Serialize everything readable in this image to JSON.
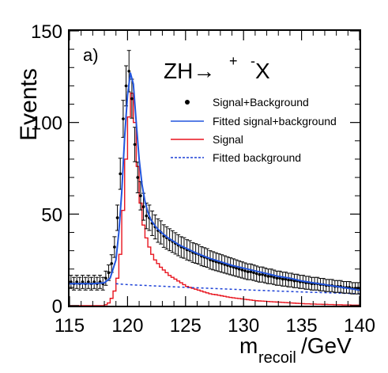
{
  "chart_data": {
    "type": "line",
    "panel_label": "a)",
    "process": {
      "prefix": "ZH→",
      "plus": "+",
      "minus": "-",
      "suffix": "X"
    },
    "xlabel": {
      "main": "m",
      "sub": "recoil",
      "unit": "/GeV"
    },
    "ylabel": "Events",
    "xlim": [
      115,
      140
    ],
    "ylim": [
      0,
      150
    ],
    "xticks": [
      115,
      120,
      125,
      130,
      135,
      140
    ],
    "yticks": [
      0,
      50,
      100,
      150
    ],
    "grid": false,
    "legend_position": "top-right",
    "legend": [
      {
        "label": "Signal+Background",
        "style": "marker",
        "color": "#000000"
      },
      {
        "label": "Fitted signal+background",
        "style": "solid",
        "color": "#2255dd"
      },
      {
        "label": "Signal",
        "style": "solid",
        "color": "#e8141e"
      },
      {
        "label": "Fitted background",
        "style": "dashed",
        "color": "#1a3fd6"
      }
    ],
    "bin_width": 0.25,
    "series": [
      {
        "name": "Signal+Background",
        "style": "points_with_errors",
        "color": "#000000",
        "x": [
          115.125,
          115.375,
          115.625,
          115.875,
          116.125,
          116.375,
          116.625,
          116.875,
          117.125,
          117.375,
          117.625,
          117.875,
          118.125,
          118.375,
          118.625,
          118.875,
          119.125,
          119.375,
          119.625,
          119.875,
          120.125,
          120.375,
          120.625,
          120.875,
          121.125,
          121.375,
          121.625,
          121.875,
          122.125,
          122.375,
          122.625,
          122.875,
          123.125,
          123.375,
          123.625,
          123.875,
          124.125,
          124.375,
          124.625,
          124.875,
          125.125,
          125.375,
          125.625,
          125.875,
          126.125,
          126.375,
          126.625,
          126.875,
          127.125,
          127.375,
          127.625,
          127.875,
          128.125,
          128.375,
          128.625,
          128.875,
          129.125,
          129.375,
          129.625,
          129.875,
          130.125,
          130.375,
          130.625,
          130.875,
          131.125,
          131.375,
          131.625,
          131.875,
          132.125,
          132.375,
          132.625,
          132.875,
          133.125,
          133.375,
          133.625,
          133.875,
          134.125,
          134.375,
          134.625,
          134.875,
          135.125,
          135.375,
          135.625,
          135.875,
          136.125,
          136.375,
          136.625,
          136.875,
          137.125,
          137.375,
          137.625,
          137.875,
          138.125,
          138.375,
          138.625,
          138.875,
          139.125,
          139.375,
          139.625,
          139.875
        ],
        "y": [
          13,
          12,
          13,
          12,
          13,
          12,
          13,
          12,
          13,
          12,
          13,
          12,
          15,
          18,
          23,
          32,
          48,
          72,
          102,
          120,
          128,
          113,
          88,
          70,
          60,
          54,
          49,
          48,
          45,
          43,
          41,
          40,
          38,
          37,
          36,
          35,
          34,
          33,
          32,
          31.5,
          30.5,
          30,
          29,
          28.5,
          28,
          27,
          26.5,
          26,
          25,
          24.5,
          24,
          23.5,
          23,
          22.5,
          22,
          21.5,
          21,
          20.5,
          20,
          19.5,
          19,
          18.5,
          18.5,
          18,
          17.5,
          17,
          17,
          16.5,
          16,
          16,
          15.5,
          15,
          15,
          14.5,
          14.5,
          14,
          14,
          13.5,
          13.5,
          13,
          13,
          12.5,
          12.5,
          12,
          12,
          12,
          11.5,
          11.5,
          11,
          11,
          11,
          10.5,
          10.5,
          10.5,
          10,
          10,
          10,
          9.5,
          9.5,
          9.5
        ]
      },
      {
        "name": "Fitted signal+background",
        "style": "line",
        "color": "#2255dd",
        "x": [
          115,
          117,
          118,
          118.5,
          119,
          119.25,
          119.5,
          119.75,
          120,
          120.25,
          120.5,
          120.75,
          121,
          121.25,
          121.5,
          121.75,
          122,
          122.5,
          123,
          123.5,
          124,
          124.5,
          125,
          126,
          127,
          128,
          129,
          130,
          131,
          132,
          133,
          134,
          135,
          136,
          137,
          138,
          139,
          140
        ],
        "y": [
          12,
          12,
          12.5,
          15,
          25,
          40,
          62,
          92,
          115,
          127,
          121,
          100,
          80,
          66,
          57,
          51,
          47,
          42.5,
          39.5,
          37,
          35,
          33,
          31.5,
          28.5,
          26,
          24,
          22,
          20.5,
          19,
          17.5,
          16,
          15,
          13.5,
          12.5,
          11.5,
          10.5,
          9.5,
          8.5
        ]
      },
      {
        "name": "Signal",
        "style": "step",
        "color": "#e8141e",
        "x": [
          115,
          115.25,
          115.5,
          115.75,
          116,
          116.25,
          116.5,
          116.75,
          117,
          117.25,
          117.5,
          117.75,
          118,
          118.25,
          118.5,
          118.75,
          119,
          119.25,
          119.5,
          119.75,
          120,
          120.25,
          120.5,
          120.75,
          121,
          121.25,
          121.5,
          121.75,
          122,
          122.25,
          122.5,
          122.75,
          123,
          123.25,
          123.5,
          123.75,
          124,
          124.25,
          124.5,
          124.75,
          125,
          125.25,
          125.5,
          125.75,
          126,
          126.25,
          126.5,
          126.75,
          127,
          127.25,
          127.5,
          127.75,
          128,
          128.25,
          128.5,
          128.75,
          129,
          129.25,
          129.5,
          129.75,
          130,
          130.25,
          130.5,
          130.75,
          131,
          131.25,
          131.5,
          131.75,
          132,
          132.25,
          132.5,
          132.75,
          133,
          133.25,
          133.5,
          133.75,
          134,
          134.25,
          134.5,
          134.75,
          135,
          135.25,
          135.5,
          135.75,
          136,
          136.25,
          136.5,
          136.75,
          137,
          137.25,
          137.5,
          137.75,
          138,
          138.25,
          138.5,
          138.75,
          139,
          139.25,
          139.5,
          139.75
        ],
        "y": [
          0,
          0,
          0,
          0,
          0,
          0,
          0,
          0,
          0,
          0,
          0,
          0,
          0.5,
          1.5,
          4,
          8,
          15,
          28,
          52,
          80,
          103,
          116,
          100,
          76,
          56,
          44,
          37,
          32,
          28,
          25,
          23,
          21,
          19.5,
          18,
          16.5,
          15.5,
          14.5,
          13.5,
          12.5,
          11.5,
          10.5,
          10,
          9.5,
          9,
          8.5,
          8,
          7.5,
          7,
          6.5,
          6.2,
          6,
          5.7,
          5.4,
          5.1,
          4.8,
          4.5,
          4.3,
          4.1,
          3.9,
          3.7,
          3.5,
          3.3,
          3.1,
          2.9,
          2.7,
          2.6,
          2.5,
          2.4,
          2.3,
          2.2,
          2.1,
          2,
          1.9,
          1.8,
          1.7,
          1.6,
          1.5,
          1.4,
          1.3,
          1.2,
          1.1,
          1,
          1,
          0.9,
          0.9,
          0.8,
          0.8,
          0.7,
          0.7,
          0.6,
          0.6,
          0.5,
          0.5,
          0.5,
          0.4,
          0.4,
          0.4,
          0.3,
          0.3,
          0.3
        ]
      },
      {
        "name": "Fitted background",
        "style": "dashed",
        "color": "#1a3fd6",
        "x": [
          119,
          120,
          125,
          130,
          135,
          140
        ],
        "y": [
          12,
          11.5,
          10,
          8.7,
          7.5,
          6.5
        ]
      }
    ]
  }
}
